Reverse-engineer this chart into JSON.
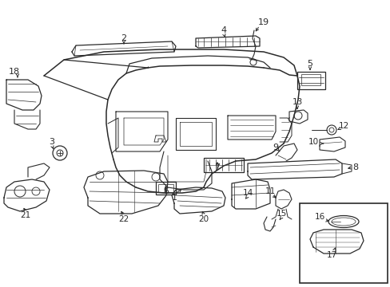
{
  "bg_color": "#ffffff",
  "line_color": "#2a2a2a",
  "fig_width": 4.89,
  "fig_height": 3.6,
  "dpi": 100,
  "coords": {
    "xlim": [
      0,
      489
    ],
    "ylim": [
      0,
      360
    ]
  }
}
